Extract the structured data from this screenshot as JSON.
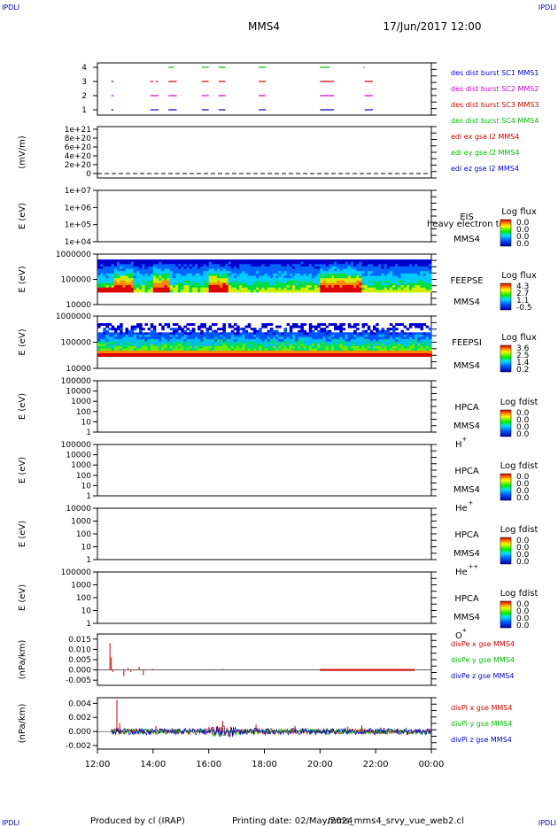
{
  "header": {
    "corner_tl": "IPDLI",
    "corner_tr": "IPDLI",
    "corner_bl": "IPDLI",
    "corner_br": "IPDLI",
    "spacecraft": "MMS4",
    "datetime": "17/Jun/2017 12:00"
  },
  "footer": {
    "produced": "Produced by cl (IRAP)",
    "printing": "Printing date: 02/May/2024",
    "file": "mms_mms4_srvy_vue_web2.cl"
  },
  "time_axis": {
    "labels": [
      "12:00",
      "14:00",
      "16:00",
      "18:00",
      "20:00",
      "22:00",
      "00:00"
    ],
    "start_hour": 12,
    "end_hour": 24
  },
  "colors": {
    "sc1": "#0000cc",
    "sc2": "#cc00cc",
    "sc3": "#cc0000",
    "sc4": "#00bb00",
    "x": "#cc0000",
    "y": "#00bb00",
    "z": "#0000cc"
  },
  "chart_data": [
    {
      "type": "scatter",
      "panel": "burst",
      "yticks": [
        "1",
        "2",
        "3",
        "4"
      ],
      "legend": [
        {
          "text": "des dist burst SC1 MMS1",
          "color": "sc1"
        },
        {
          "text": "des dist burst SC2 MMS2",
          "color": "sc2"
        },
        {
          "text": "des dist burst SC3 MMS3",
          "color": "sc3"
        },
        {
          "text": "des dist burst SC4 MMS4",
          "color": "sc4"
        }
      ],
      "series": [
        {
          "level": 4,
          "color": "sc4",
          "segments": [
            [
              14.55,
              14.75
            ],
            [
              15.75,
              16.0
            ],
            [
              16.35,
              16.6
            ],
            [
              17.8,
              18.05
            ],
            [
              20.0,
              20.35
            ],
            [
              21.55,
              21.6
            ]
          ]
        },
        {
          "level": 3,
          "color": "sc3",
          "segments": [
            [
              12.5,
              12.58
            ],
            [
              13.9,
              14.0
            ],
            [
              14.1,
              14.18
            ],
            [
              14.55,
              14.85
            ],
            [
              15.75,
              16.0
            ],
            [
              16.35,
              16.6
            ],
            [
              17.8,
              18.05
            ],
            [
              20.0,
              20.5
            ],
            [
              21.6,
              21.9
            ]
          ]
        },
        {
          "level": 2,
          "color": "sc2",
          "segments": [
            [
              12.5,
              12.58
            ],
            [
              13.9,
              14.2
            ],
            [
              14.55,
              14.85
            ],
            [
              15.75,
              16.0
            ],
            [
              16.35,
              16.6
            ],
            [
              17.8,
              18.05
            ],
            [
              20.0,
              20.5
            ],
            [
              21.6,
              21.9
            ]
          ]
        },
        {
          "level": 1,
          "color": "sc1",
          "segments": [
            [
              12.5,
              12.58
            ],
            [
              13.9,
              14.2
            ],
            [
              14.55,
              14.85
            ],
            [
              15.75,
              16.0
            ],
            [
              16.35,
              16.6
            ],
            [
              17.8,
              18.05
            ],
            [
              20.0,
              20.5
            ],
            [
              21.6,
              21.9
            ]
          ]
        }
      ]
    },
    {
      "type": "line",
      "panel": "edi",
      "ylabel": "(mV/m)",
      "yticks": [
        "1e+21",
        "8e+20",
        "6e+20",
        "4e+20",
        "2e+20",
        "0"
      ],
      "legend": [
        {
          "text": "edi ex gse l2 MMS4",
          "color": "x"
        },
        {
          "text": "edi ey gse l2 MMS4",
          "color": "y"
        },
        {
          "text": "edi ez gse l2 MMS4",
          "color": "z"
        }
      ]
    },
    {
      "type": "heatmap",
      "panel": "eis",
      "ylabel": "E (eV)",
      "yticks": [
        "1e+07",
        "1e+06",
        "1e+05",
        "1e+04"
      ],
      "instrument": "EIS",
      "note": "heavy electron to",
      "craft": "MMS4",
      "colorbar": {
        "title": "Log flux",
        "labels": [
          "0.0",
          "0.0",
          "0.0",
          "0.0"
        ]
      }
    },
    {
      "type": "heatmap",
      "panel": "feepse",
      "ylabel": "E (eV)",
      "yticks": [
        "1000000",
        "100000",
        "10000"
      ],
      "instrument": "FEEPSE",
      "craft": "MMS4",
      "colorbar": {
        "title": "Log flux",
        "labels": [
          "4.3",
          "2.7",
          "1.1",
          "-0.5"
        ]
      }
    },
    {
      "type": "heatmap",
      "panel": "feepsi",
      "ylabel": "E (eV)",
      "yticks": [
        "1000000",
        "100000",
        "10000"
      ],
      "instrument": "FEEPSI",
      "craft": "MMS4",
      "colorbar": {
        "title": "Log flux",
        "labels": [
          "3.6",
          "2.5",
          "1.4",
          "0.2"
        ]
      }
    },
    {
      "type": "heatmap",
      "panel": "hpca_h",
      "ylabel": "E (eV)",
      "yticks": [
        "100000",
        "10000",
        "1000",
        "100",
        "10",
        "1"
      ],
      "instrument": "HPCA",
      "craft": "MMS4",
      "species": "H",
      "charge": "+",
      "colorbar": {
        "title": "Log fdist",
        "labels": [
          "0.0",
          "0.0",
          "0.0",
          "0.0"
        ]
      }
    },
    {
      "type": "heatmap",
      "panel": "hpca_he",
      "ylabel": "E (eV)",
      "yticks": [
        "100000",
        "10000",
        "1000",
        "100",
        "10",
        "1"
      ],
      "instrument": "HPCA",
      "craft": "MMS4",
      "species": "He",
      "charge": "+",
      "colorbar": {
        "title": "Log fdist",
        "labels": [
          "0.0",
          "0.0",
          "0.0",
          "0.0"
        ]
      }
    },
    {
      "type": "heatmap",
      "panel": "hpca_he2",
      "ylabel": "E (eV)",
      "yticks": [
        "10000",
        "1000",
        "100",
        "10",
        "1"
      ],
      "instrument": "HPCA",
      "craft": "MMS4",
      "species": "He",
      "charge": "++",
      "colorbar": {
        "title": "Log fdist",
        "labels": [
          "0.0",
          "0.0",
          "0.0",
          "0.0"
        ]
      }
    },
    {
      "type": "heatmap",
      "panel": "hpca_o",
      "ylabel": "E (eV)",
      "yticks": [
        "100000",
        "1000",
        "100",
        "10",
        "1"
      ],
      "instrument": "HPCA",
      "craft": "MMS4",
      "species": "O",
      "charge": "+",
      "colorbar": {
        "title": "Log fdist",
        "labels": [
          "0.0",
          "0.0",
          "0.0",
          "0.0"
        ]
      }
    },
    {
      "type": "line",
      "panel": "divpe",
      "ylabel": "(nPa/km)",
      "yticks": [
        "0.015",
        "0.010",
        "0.005",
        "0.000",
        "-0.005"
      ],
      "ylim": [
        -0.0075,
        0.0175
      ],
      "legend": [
        {
          "text": "divPe x gse MMS4",
          "color": "x"
        },
        {
          "text": "divPe y gse MMS4",
          "color": "y"
        },
        {
          "text": "divPe z gse MMS4",
          "color": "z"
        }
      ],
      "spikes": [
        [
          12.45,
          0.013
        ],
        [
          12.5,
          0.006
        ],
        [
          12.55,
          -0.001
        ],
        [
          12.95,
          -0.003
        ],
        [
          13.1,
          0.001
        ],
        [
          13.2,
          -0.001
        ],
        [
          13.5,
          0.0015
        ],
        [
          13.65,
          -0.0025
        ],
        [
          14.0,
          0.0005
        ],
        [
          16.5,
          0.0005
        ],
        [
          20.0,
          0.0003
        ]
      ]
    },
    {
      "type": "line",
      "panel": "divpi",
      "ylabel": "(nPa/km)",
      "yticks": [
        "0.004",
        "0.002",
        "0.000",
        "-0.002"
      ],
      "ylim": [
        -0.0025,
        0.0048
      ],
      "legend": [
        {
          "text": "divPi x gse MMS4",
          "color": "x"
        },
        {
          "text": "divPi y gse MMS4",
          "color": "y"
        },
        {
          "text": "divPi z gse MMS4",
          "color": "z"
        }
      ],
      "spikes": [
        [
          12.7,
          0.0045
        ],
        [
          12.8,
          0.0012
        ],
        [
          13.2,
          0.0002
        ],
        [
          14.1,
          0.0008
        ],
        [
          16.5,
          0.0015
        ],
        [
          17.7,
          0.001
        ],
        [
          19.1,
          0.0008
        ],
        [
          21.0,
          0.0007
        ],
        [
          21.5,
          0.0009
        ],
        [
          22.3,
          0.0005
        ]
      ]
    }
  ]
}
